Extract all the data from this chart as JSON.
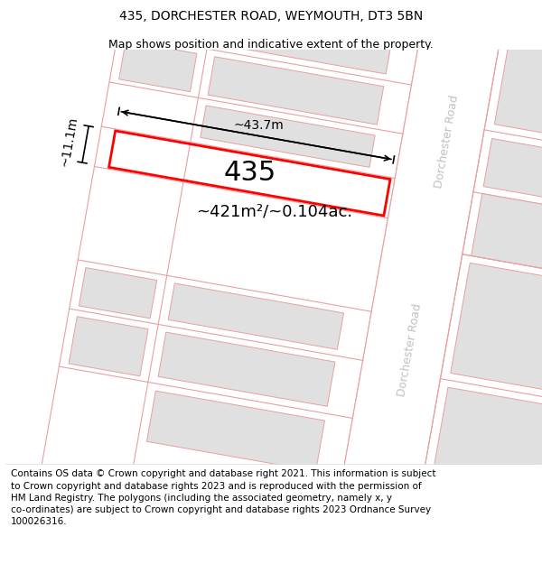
{
  "title": "435, DORCHESTER ROAD, WEYMOUTH, DT3 5BN",
  "subtitle": "Map shows position and indicative extent of the property.",
  "footer_line1": "Contains OS data © Crown copyright and database right 2021. This information is subject",
  "footer_line2": "to Crown copyright and database rights 2023 and is reproduced with the permission of",
  "footer_line3": "HM Land Registry. The polygons (including the associated geometry, namely x, y",
  "footer_line4": "co-ordinates) are subject to Crown copyright and database rights 2023 Ordnance Survey",
  "footer_line5": "100026316.",
  "property_label": "435",
  "area_label": "~421m²/~0.104ac.",
  "width_label": "~43.7m",
  "height_label": "~11.1m",
  "bg_color": "#ffffff",
  "plot_edge": "#ff0000",
  "parcel_edge": "#e8a0a0",
  "building_fill": "#e0e0e0",
  "building_edge": "#e8a0a0",
  "road_fill": "#ffffff",
  "tilt_deg": -10,
  "title_fontsize": 10,
  "subtitle_fontsize": 9,
  "property_fontsize": 22,
  "area_fontsize": 13,
  "dim_fontsize": 10,
  "footer_fontsize": 7.5,
  "road_label_fontsize": 9,
  "road_label_color": "#c0c0c0"
}
